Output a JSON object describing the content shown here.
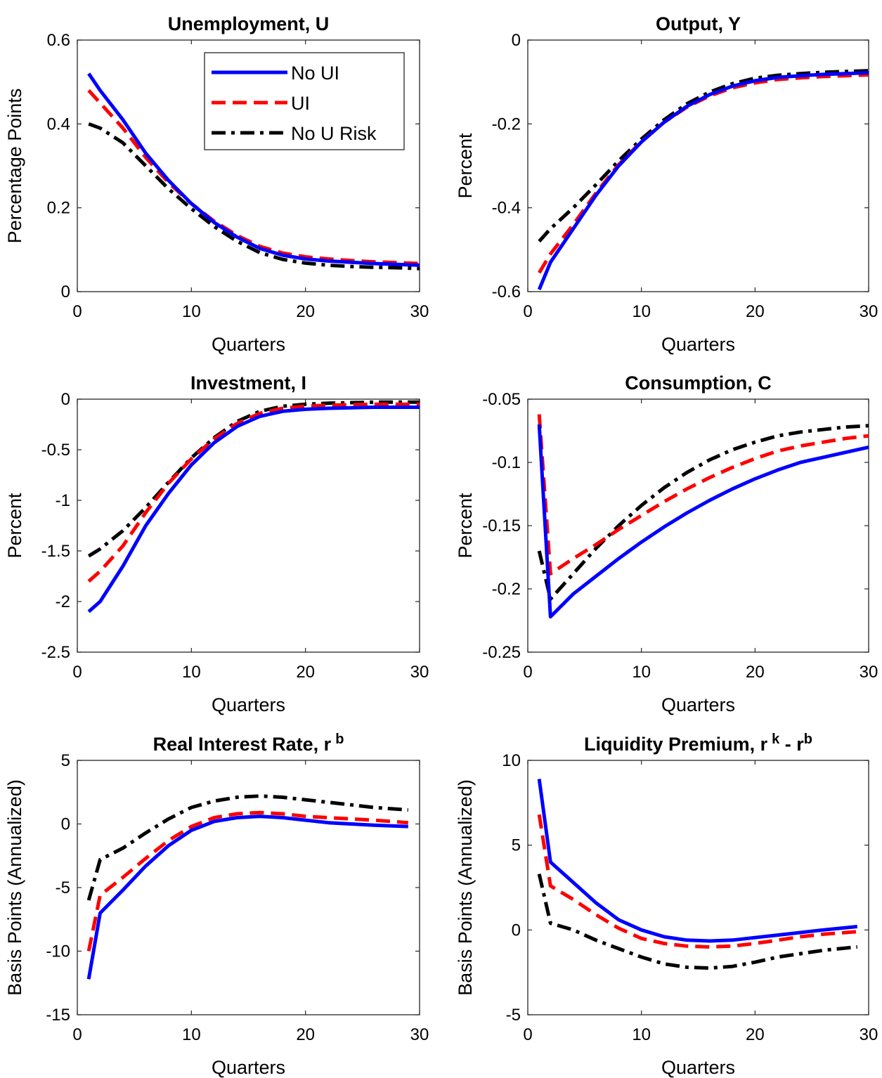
{
  "chart_data": [
    {
      "type": "line",
      "title": "Unemployment, U",
      "xlabel": "Quarters",
      "ylabel": "Percentage Points",
      "xlim": [
        0,
        30
      ],
      "ylim": [
        0,
        0.6
      ],
      "xticks": [
        "0",
        "10",
        "20",
        "30"
      ],
      "yticks": [
        "0",
        "0.2",
        "0.4",
        "0.6"
      ],
      "grid": false,
      "legend": {
        "placement": "top-right",
        "entries": [
          "No UI",
          "UI",
          "No U Risk"
        ]
      },
      "x": [
        1,
        2,
        4,
        6,
        8,
        10,
        12,
        14,
        16,
        18,
        20,
        22,
        24,
        26,
        28,
        30
      ],
      "series": [
        {
          "name": "No UI",
          "values": [
            0.52,
            0.48,
            0.41,
            0.33,
            0.265,
            0.21,
            0.165,
            0.13,
            0.103,
            0.087,
            0.078,
            0.073,
            0.07,
            0.067,
            0.065,
            0.063
          ]
        },
        {
          "name": "UI",
          "values": [
            0.48,
            0.45,
            0.39,
            0.32,
            0.26,
            0.21,
            0.168,
            0.134,
            0.108,
            0.092,
            0.083,
            0.078,
            0.074,
            0.071,
            0.069,
            0.067
          ]
        },
        {
          "name": "No U Risk",
          "values": [
            0.4,
            0.39,
            0.355,
            0.3,
            0.245,
            0.198,
            0.155,
            0.12,
            0.093,
            0.077,
            0.068,
            0.063,
            0.06,
            0.058,
            0.057,
            0.055
          ]
        }
      ]
    },
    {
      "type": "line",
      "title": "Output, Y",
      "xlabel": "Quarters",
      "ylabel": "Percent",
      "xlim": [
        0,
        30
      ],
      "ylim": [
        -0.6,
        0
      ],
      "xticks": [
        "0",
        "10",
        "20",
        "30"
      ],
      "yticks": [
        "-0.6",
        "-0.4",
        "-0.2",
        "0"
      ],
      "grid": false,
      "x": [
        1,
        2,
        4,
        6,
        8,
        10,
        12,
        14,
        16,
        18,
        20,
        22,
        24,
        26,
        28,
        30
      ],
      "series": [
        {
          "name": "No UI",
          "values": [
            -0.595,
            -0.53,
            -0.45,
            -0.37,
            -0.3,
            -0.243,
            -0.196,
            -0.158,
            -0.13,
            -0.11,
            -0.097,
            -0.089,
            -0.085,
            -0.082,
            -0.08,
            -0.078
          ]
        },
        {
          "name": "UI",
          "values": [
            -0.555,
            -0.51,
            -0.44,
            -0.365,
            -0.297,
            -0.242,
            -0.196,
            -0.16,
            -0.133,
            -0.114,
            -0.102,
            -0.094,
            -0.09,
            -0.087,
            -0.085,
            -0.083
          ]
        },
        {
          "name": "No U Risk",
          "values": [
            -0.48,
            -0.45,
            -0.4,
            -0.345,
            -0.288,
            -0.236,
            -0.19,
            -0.152,
            -0.124,
            -0.104,
            -0.091,
            -0.084,
            -0.08,
            -0.077,
            -0.075,
            -0.073
          ]
        }
      ]
    },
    {
      "type": "line",
      "title": "Investment, I",
      "xlabel": "Quarters",
      "ylabel": "Percent",
      "xlim": [
        0,
        30
      ],
      "ylim": [
        -2.5,
        0
      ],
      "xticks": [
        "0",
        "10",
        "20",
        "30"
      ],
      "yticks": [
        "-2.5",
        "-2",
        "-1.5",
        "-1",
        "-0.5",
        "0"
      ],
      "grid": false,
      "x": [
        1,
        2,
        4,
        6,
        8,
        10,
        12,
        14,
        16,
        18,
        20,
        22,
        24,
        26,
        28,
        30
      ],
      "series": [
        {
          "name": "No UI",
          "values": [
            -2.1,
            -2.0,
            -1.65,
            -1.25,
            -0.93,
            -0.65,
            -0.43,
            -0.27,
            -0.17,
            -0.12,
            -0.1,
            -0.09,
            -0.085,
            -0.08,
            -0.08,
            -0.08
          ]
        },
        {
          "name": "UI",
          "values": [
            -1.8,
            -1.7,
            -1.45,
            -1.12,
            -0.83,
            -0.59,
            -0.39,
            -0.24,
            -0.14,
            -0.09,
            -0.07,
            -0.06,
            -0.055,
            -0.05,
            -0.05,
            -0.05
          ]
        },
        {
          "name": "No U Risk",
          "values": [
            -1.55,
            -1.48,
            -1.3,
            -1.07,
            -0.82,
            -0.58,
            -0.38,
            -0.22,
            -0.12,
            -0.07,
            -0.05,
            -0.04,
            -0.035,
            -0.03,
            -0.03,
            -0.03
          ]
        }
      ]
    },
    {
      "type": "line",
      "title": "Consumption, C",
      "xlabel": "Quarters",
      "ylabel": "Percent",
      "xlim": [
        0,
        30
      ],
      "ylim": [
        -0.25,
        -0.05
      ],
      "xticks": [
        "0",
        "10",
        "20",
        "30"
      ],
      "yticks": [
        "-0.25",
        "-0.2",
        "-0.15",
        "-0.1",
        "-0.05"
      ],
      "grid": false,
      "x": [
        1,
        2,
        4,
        6,
        8,
        10,
        12,
        14,
        16,
        18,
        20,
        22,
        24,
        26,
        28,
        30
      ],
      "series": [
        {
          "name": "No UI",
          "values": [
            -0.07,
            -0.222,
            -0.204,
            -0.19,
            -0.176,
            -0.163,
            -0.151,
            -0.14,
            -0.13,
            -0.121,
            -0.113,
            -0.106,
            -0.1,
            -0.096,
            -0.092,
            -0.088
          ]
        },
        {
          "name": "UI",
          "values": [
            -0.062,
            -0.188,
            -0.176,
            -0.165,
            -0.153,
            -0.142,
            -0.131,
            -0.121,
            -0.112,
            -0.104,
            -0.097,
            -0.091,
            -0.087,
            -0.084,
            -0.081,
            -0.079
          ]
        },
        {
          "name": "No U Risk",
          "values": [
            -0.17,
            -0.208,
            -0.188,
            -0.168,
            -0.15,
            -0.134,
            -0.12,
            -0.108,
            -0.098,
            -0.09,
            -0.084,
            -0.079,
            -0.076,
            -0.074,
            -0.072,
            -0.071
          ]
        }
      ]
    },
    {
      "type": "line",
      "title": "Real Interest Rate, r",
      "title_superscript": "b",
      "xlabel": "Quarters",
      "ylabel": "Basis Points (Annualized)",
      "xlim": [
        0,
        30
      ],
      "ylim": [
        -15,
        5
      ],
      "xticks": [
        "0",
        "10",
        "20",
        "30"
      ],
      "yticks": [
        "-15",
        "-10",
        "-5",
        "0",
        "5"
      ],
      "grid": false,
      "x": [
        1,
        2,
        4,
        6,
        8,
        10,
        12,
        14,
        16,
        18,
        20,
        22,
        24,
        26,
        29
      ],
      "series": [
        {
          "name": "No UI",
          "values": [
            -12.2,
            -7.0,
            -5.2,
            -3.3,
            -1.7,
            -0.5,
            0.2,
            0.5,
            0.6,
            0.5,
            0.3,
            0.1,
            0.0,
            -0.1,
            -0.2
          ]
        },
        {
          "name": "UI",
          "values": [
            -10.0,
            -5.6,
            -4.2,
            -2.7,
            -1.3,
            -0.2,
            0.5,
            0.8,
            0.9,
            0.8,
            0.6,
            0.5,
            0.4,
            0.3,
            0.1
          ]
        },
        {
          "name": "No U Risk",
          "values": [
            -6.0,
            -2.8,
            -1.9,
            -0.7,
            0.4,
            1.3,
            1.8,
            2.1,
            2.2,
            2.1,
            1.9,
            1.7,
            1.5,
            1.3,
            1.1
          ]
        }
      ]
    },
    {
      "type": "line",
      "title": "Liquidity Premium, r",
      "title_superscript": "k",
      "title_suffix": " - r",
      "title_suffix_superscript": "b",
      "xlabel": "Quarters",
      "ylabel": "Basis Points (Annualized)",
      "xlim": [
        0,
        30
      ],
      "ylim": [
        -5,
        10
      ],
      "xticks": [
        "0",
        "10",
        "20",
        "30"
      ],
      "yticks": [
        "-5",
        "0",
        "5",
        "10"
      ],
      "grid": false,
      "x": [
        1,
        2,
        4,
        6,
        8,
        10,
        12,
        14,
        16,
        18,
        20,
        22,
        24,
        26,
        29
      ],
      "series": [
        {
          "name": "No UI",
          "values": [
            8.9,
            4.0,
            2.8,
            1.6,
            0.6,
            0.0,
            -0.4,
            -0.6,
            -0.65,
            -0.6,
            -0.45,
            -0.3,
            -0.15,
            0.0,
            0.2
          ]
        },
        {
          "name": "UI",
          "values": [
            6.8,
            2.6,
            1.8,
            0.9,
            0.1,
            -0.5,
            -0.8,
            -0.95,
            -1.0,
            -0.95,
            -0.8,
            -0.6,
            -0.4,
            -0.25,
            -0.1
          ]
        },
        {
          "name": "No U Risk",
          "values": [
            3.3,
            0.4,
            0.0,
            -0.6,
            -1.1,
            -1.6,
            -2.0,
            -2.2,
            -2.25,
            -2.15,
            -1.9,
            -1.6,
            -1.4,
            -1.2,
            -1.0
          ]
        }
      ]
    }
  ],
  "series_styles": [
    {
      "name": "No UI",
      "color": "#0000ff",
      "dash": "solid"
    },
    {
      "name": "UI",
      "color": "#ff0000",
      "dash": "dashed"
    },
    {
      "name": "No U Risk",
      "color": "#000000",
      "dash": "dashdot"
    }
  ]
}
